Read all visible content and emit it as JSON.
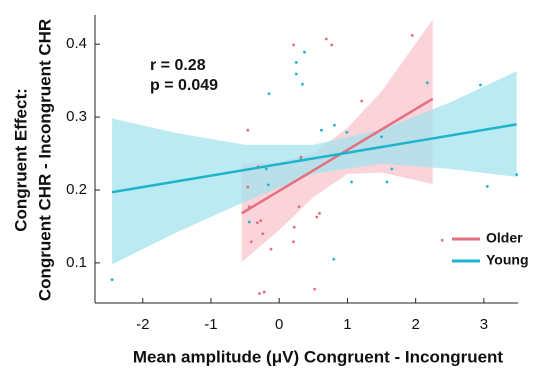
{
  "chart_data": {
    "type": "scatter",
    "ylabel": [
      "Congruent Effect:",
      "Congruent CHR - Incongruent CHR"
    ],
    "xlabel": "Mean amplitude (μV) Congruent - Incongruent",
    "annotations": [
      "r = 0.28",
      "p = 0.049"
    ],
    "xlim": [
      -2.7,
      3.5
    ],
    "ylim": [
      0.045,
      0.44
    ],
    "xticks": [
      -2,
      -1,
      0,
      1,
      2,
      3
    ],
    "yticks": [
      0.1,
      0.2,
      0.3,
      0.4
    ],
    "legend": "lower right",
    "series": [
      {
        "name": "Older",
        "color": "#e46f7e",
        "band_color": "#f9c6cc",
        "x": [
          0.69,
          0.77,
          0.21,
          1.95,
          1.21,
          0.32,
          -0.31,
          -0.46,
          -0.44,
          -0.32,
          -0.27,
          -0.41,
          -0.24,
          -0.12,
          0.22,
          0.21,
          0.55,
          0.59,
          -0.22,
          -0.29,
          0.52,
          2.39,
          -0.46,
          0.29
        ],
        "y": [
          0.407,
          0.399,
          0.399,
          0.412,
          0.322,
          0.245,
          0.232,
          0.204,
          0.177,
          0.155,
          0.158,
          0.129,
          0.14,
          0.119,
          0.149,
          0.129,
          0.163,
          0.168,
          0.06,
          0.058,
          0.064,
          0.131,
          0.282,
          0.177
        ],
        "fit": {
          "x": [
            -0.55,
            2.25
          ],
          "y": [
            0.168,
            0.325
          ]
        },
        "band": {
          "x": [
            -0.55,
            0,
            0.5,
            1,
            1.5,
            2.25
          ],
          "upper": [
            0.236,
            0.238,
            0.25,
            0.285,
            0.335,
            0.434
          ],
          "lower": [
            0.101,
            0.145,
            0.19,
            0.222,
            0.224,
            0.208
          ]
        }
      },
      {
        "name": "Young",
        "color": "#1db5cc",
        "band_color": "#a6e3ee",
        "x": [
          0.37,
          0.25,
          0.25,
          -0.15,
          0.34,
          2.95,
          2.17,
          0.62,
          0.81,
          0.99,
          1.5,
          -0.16,
          -0.44,
          3.48,
          3.05,
          1.58,
          1.06,
          0.8,
          -2.45,
          -0.19,
          0.32,
          1.65
        ],
        "y": [
          0.389,
          0.375,
          0.359,
          0.332,
          0.345,
          0.344,
          0.347,
          0.282,
          0.289,
          0.279,
          0.273,
          0.207,
          0.156,
          0.221,
          0.205,
          0.211,
          0.211,
          0.105,
          0.077,
          0.229,
          0.242,
          0.229
        ],
        "fit": {
          "x": [
            -2.45,
            3.48
          ],
          "y": [
            0.197,
            0.29
          ]
        },
        "band": {
          "x": [
            -2.45,
            -1.5,
            -0.5,
            0.5,
            1.5,
            2.5,
            3.48
          ],
          "upper": [
            0.298,
            0.278,
            0.262,
            0.262,
            0.283,
            0.32,
            0.363
          ],
          "lower": [
            0.098,
            0.142,
            0.184,
            0.222,
            0.236,
            0.229,
            0.218
          ]
        }
      }
    ]
  }
}
